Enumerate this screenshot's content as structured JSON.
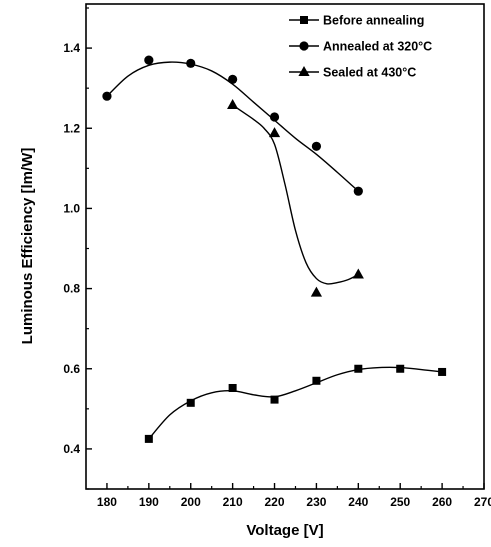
{
  "chart_data": {
    "type": "line",
    "xlabel": "Voltage [V]",
    "ylabel": "Luminous Efficiency [lm/W]",
    "xlim": [
      175,
      270
    ],
    "ylim": [
      0.3,
      1.51
    ],
    "x_ticks": [
      180,
      190,
      200,
      210,
      220,
      230,
      240,
      250,
      260,
      270
    ],
    "x_tick_labels": [
      "180",
      "190",
      "200",
      "210",
      "220",
      "230",
      "240",
      "250",
      "260",
      "270"
    ],
    "y_ticks": [
      0.4,
      0.6,
      0.8,
      1.0,
      1.2,
      1.4
    ],
    "y_tick_labels": [
      "0.4",
      "0.6",
      "0.8",
      "1.0",
      "1.2",
      "1.4"
    ],
    "grid": false,
    "legend_position": "top-right",
    "series": [
      {
        "name": "Before annealing",
        "marker": "square",
        "x": [
          190,
          200,
          210,
          220,
          230,
          240,
          250,
          260
        ],
        "y": [
          0.425,
          0.515,
          0.552,
          0.523,
          0.57,
          0.6,
          0.6,
          0.592
        ],
        "curve_x": [
          190,
          195,
          200,
          205,
          210,
          215,
          220,
          225,
          230,
          235,
          240,
          245,
          250,
          255,
          260
        ],
        "curve_y": [
          0.425,
          0.485,
          0.52,
          0.54,
          0.545,
          0.535,
          0.53,
          0.545,
          0.565,
          0.585,
          0.598,
          0.603,
          0.603,
          0.598,
          0.592
        ]
      },
      {
        "name": "Annealed at 320°C",
        "marker": "circle",
        "x": [
          180,
          190,
          200,
          210,
          220,
          230,
          240
        ],
        "y": [
          1.28,
          1.37,
          1.362,
          1.322,
          1.228,
          1.155,
          1.043
        ],
        "curve_x": [
          180,
          185,
          190,
          195,
          200,
          205,
          210,
          215,
          220,
          225,
          230,
          235,
          240
        ],
        "curve_y": [
          1.28,
          1.33,
          1.357,
          1.365,
          1.36,
          1.343,
          1.31,
          1.265,
          1.22,
          1.175,
          1.135,
          1.09,
          1.043
        ]
      },
      {
        "name": "Sealed at 430°C",
        "marker": "triangle",
        "x": [
          210,
          220,
          230,
          240
        ],
        "y": [
          1.258,
          1.188,
          0.79,
          0.835
        ],
        "curve_x": [
          210,
          212.5,
          215,
          217.5,
          220,
          222.5,
          225,
          227.5,
          230,
          232.5,
          235,
          237.5,
          240
        ],
        "curve_y": [
          1.258,
          1.24,
          1.222,
          1.2,
          1.16,
          1.06,
          0.945,
          0.865,
          0.825,
          0.812,
          0.815,
          0.822,
          0.835
        ]
      }
    ]
  }
}
